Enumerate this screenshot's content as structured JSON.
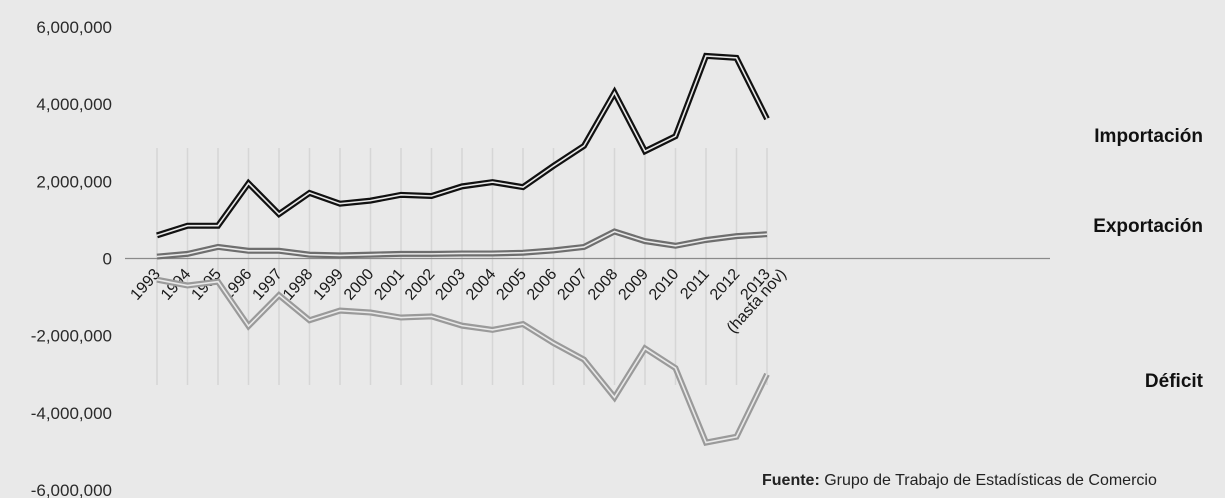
{
  "chart_data": {
    "type": "line",
    "x": [
      "1993",
      "1994",
      "1995",
      "1996",
      "1997",
      "1998",
      "1999",
      "2000",
      "2001",
      "2002",
      "2003",
      "2004",
      "2005",
      "2006",
      "2007",
      "2008",
      "2009",
      "2010",
      "2011",
      "2012",
      "2013"
    ],
    "x_tick_labels": [
      "1993",
      "1994",
      "1995",
      "1996",
      "1997",
      "1998",
      "1999",
      "2000",
      "2001",
      "2002",
      "2003",
      "2004",
      "2005",
      "2006",
      "2007",
      "2008",
      "2009",
      "2010",
      "2011",
      "2012",
      "2013"
    ],
    "x_tick_sublabel": "(hasta nov)",
    "y_tick_labels": [
      "6,000,000",
      "4,000,000",
      "2,000,000",
      "0",
      "-2,000,000",
      "-4,000,000",
      "-6,000,000"
    ],
    "y_ticks": [
      6000000,
      4000000,
      2000000,
      0,
      -2000000,
      -4000000,
      -6000000
    ],
    "ylim": [
      -6000000,
      6000000
    ],
    "grid": "vertical",
    "series": [
      {
        "name": "Importación",
        "color": "#111111",
        "values": [
          600000,
          850000,
          850000,
          1950000,
          1150000,
          1700000,
          1420000,
          1500000,
          1650000,
          1620000,
          1870000,
          1980000,
          1850000,
          2400000,
          2920000,
          4300000,
          2780000,
          3170000,
          5250000,
          5200000,
          3620000
        ]
      },
      {
        "name": "Exportación",
        "color": "#6e6e6e",
        "values": [
          50000,
          120000,
          300000,
          200000,
          200000,
          100000,
          80000,
          100000,
          120000,
          120000,
          130000,
          130000,
          150000,
          210000,
          300000,
          700000,
          450000,
          330000,
          480000,
          580000,
          630000
        ]
      },
      {
        "name": "Déficit",
        "color": "#9a9a9a",
        "values": [
          -550000,
          -700000,
          -600000,
          -1750000,
          -950000,
          -1600000,
          -1350000,
          -1400000,
          -1530000,
          -1500000,
          -1740000,
          -1850000,
          -1700000,
          -2190000,
          -2620000,
          -3600000,
          -2330000,
          -2840000,
          -4770000,
          -4620000,
          -3000000
        ]
      }
    ]
  },
  "source_note": {
    "label": "Fuente:",
    "text": " Grupo de Trabajo de Estadísticas de Comercio"
  }
}
